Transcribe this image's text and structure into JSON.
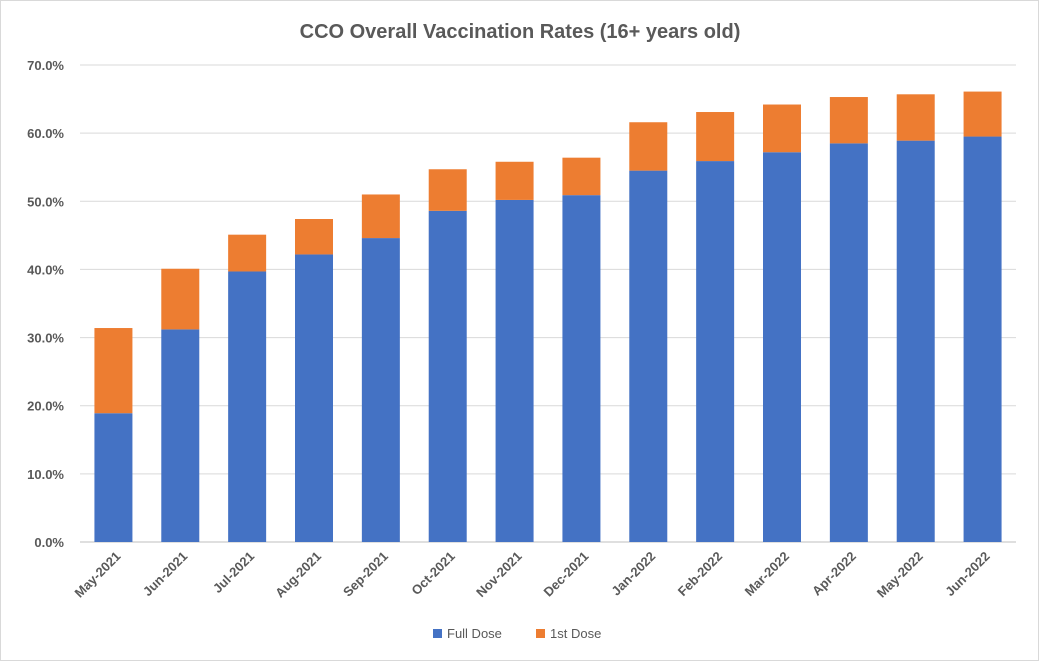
{
  "chart_data": {
    "type": "bar",
    "stacked": true,
    "title": "CCO Overall Vaccination Rates (16+ years old)",
    "xlabel": "",
    "ylabel": "",
    "ylim": [
      0,
      70
    ],
    "y_ticks": [
      "0.0%",
      "10.0%",
      "20.0%",
      "30.0%",
      "40.0%",
      "50.0%",
      "60.0%",
      "70.0%"
    ],
    "grid": true,
    "legend": "bottom",
    "categories": [
      "May-2021",
      "Jun-2021",
      "Jul-2021",
      "Aug-2021",
      "Sep-2021",
      "Oct-2021",
      "Nov-2021",
      "Dec-2021",
      "Jan-2022",
      "Feb-2022",
      "Mar-2022",
      "Apr-2022",
      "May-2022",
      "Jun-2022"
    ],
    "series": [
      {
        "name": "Full Dose",
        "color": "#4472c4",
        "values": [
          18.9,
          31.2,
          39.7,
          42.2,
          44.6,
          48.6,
          50.2,
          50.9,
          54.5,
          55.9,
          57.2,
          58.5,
          58.9,
          59.5
        ]
      },
      {
        "name": "1st Dose",
        "color": "#ed7d31",
        "values": [
          12.5,
          8.9,
          5.4,
          5.2,
          6.4,
          6.1,
          5.6,
          5.5,
          7.1,
          7.2,
          7.0,
          6.8,
          6.8,
          6.6
        ]
      }
    ]
  }
}
